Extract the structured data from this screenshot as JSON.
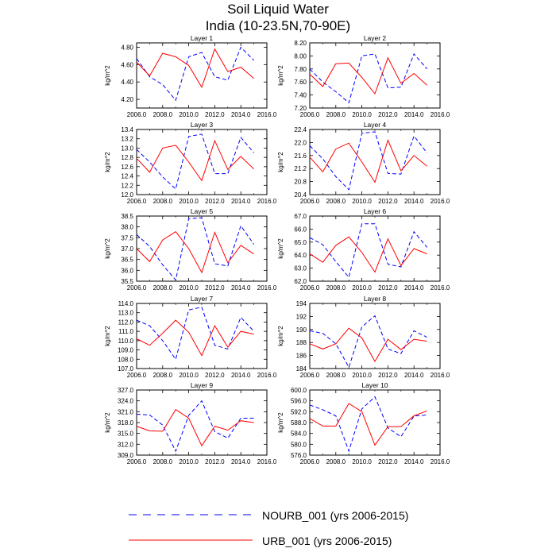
{
  "figure": {
    "title_line1": "Soil Liquid Water",
    "title_line2": "India (10-23.5N,70-90E)"
  },
  "legend": [
    {
      "label": "NOURB_001 (yrs 2006-2015)",
      "color": "#0000ff",
      "style": "dashed"
    },
    {
      "label": "URB_001 (yrs 2006-2015)",
      "color": "#ff0000",
      "style": "solid"
    }
  ],
  "chart_data": [
    {
      "type": "line",
      "title": "Layer 1",
      "ylabel": "kg/m^2",
      "xlim": [
        2006,
        2016
      ],
      "ylim": [
        4.1,
        4.85
      ],
      "xticks": [
        "2006.0",
        "2008.0",
        "2010.0",
        "2012.0",
        "2014.0",
        "2016.0"
      ],
      "yticks": [
        {
          "v": 4.2,
          "label": "4.20"
        },
        {
          "v": 4.4,
          "label": "4.40"
        },
        {
          "v": 4.6,
          "label": "4.60"
        },
        {
          "v": 4.8,
          "label": "4.80"
        }
      ],
      "x": [
        2006,
        2007,
        2008,
        2009,
        2010,
        2011,
        2012,
        2013,
        2014,
        2015
      ],
      "series": [
        {
          "name": "NOURB_001 (yrs 2006-2015)",
          "values": [
            4.67,
            4.46,
            4.37,
            4.19,
            4.69,
            4.74,
            4.46,
            4.42,
            4.8,
            4.65
          ]
        },
        {
          "name": "URB_001 (yrs 2006-2015)",
          "values": [
            4.63,
            4.47,
            4.73,
            4.69,
            4.59,
            4.34,
            4.78,
            4.52,
            4.57,
            4.44
          ]
        }
      ]
    },
    {
      "type": "line",
      "title": "Layer 2",
      "ylabel": "kg/m^2",
      "xlim": [
        2006,
        2016
      ],
      "ylim": [
        7.2,
        8.2
      ],
      "xticks": [
        "2006.0",
        "2008.0",
        "2010.0",
        "2012.0",
        "2014.0",
        "2016.0"
      ],
      "yticks": [
        {
          "v": 7.2,
          "label": "7.20"
        },
        {
          "v": 7.4,
          "label": "7.40"
        },
        {
          "v": 7.6,
          "label": "7.60"
        },
        {
          "v": 7.8,
          "label": "7.80"
        },
        {
          "v": 8.0,
          "label": "8.00"
        },
        {
          "v": 8.2,
          "label": "8.20"
        }
      ],
      "x": [
        2006,
        2007,
        2008,
        2009,
        2010,
        2011,
        2012,
        2013,
        2014,
        2015
      ],
      "series": [
        {
          "name": "NOURB_001 (yrs 2006-2015)",
          "values": [
            7.8,
            7.6,
            7.45,
            7.28,
            8.0,
            8.03,
            7.51,
            7.52,
            8.03,
            7.8
          ]
        },
        {
          "name": "URB_001 (yrs 2006-2015)",
          "values": [
            7.72,
            7.53,
            7.88,
            7.89,
            7.67,
            7.42,
            7.97,
            7.58,
            7.73,
            7.55
          ]
        }
      ]
    },
    {
      "type": "line",
      "title": "Layer 3",
      "ylabel": "kg/m^2",
      "xlim": [
        2006,
        2016
      ],
      "ylim": [
        12.0,
        13.4
      ],
      "xticks": [
        "2006.0",
        "2008.0",
        "2010.0",
        "2012.0",
        "2014.0",
        "2016.0"
      ],
      "yticks": [
        {
          "v": 12.0,
          "label": "12.0"
        },
        {
          "v": 12.2,
          "label": "12.2"
        },
        {
          "v": 12.4,
          "label": "12.4"
        },
        {
          "v": 12.6,
          "label": "12.6"
        },
        {
          "v": 12.8,
          "label": "12.8"
        },
        {
          "v": 13.0,
          "label": "13.0"
        },
        {
          "v": 13.2,
          "label": "13.2"
        },
        {
          "v": 13.4,
          "label": "13.4"
        }
      ],
      "x": [
        2006,
        2007,
        2008,
        2009,
        2010,
        2011,
        2012,
        2013,
        2014,
        2015
      ],
      "series": [
        {
          "name": "NOURB_001 (yrs 2006-2015)",
          "values": [
            12.97,
            12.7,
            12.38,
            12.12,
            13.25,
            13.3,
            12.45,
            12.45,
            13.23,
            12.9
          ]
        },
        {
          "name": "URB_001 (yrs 2006-2015)",
          "values": [
            12.78,
            12.48,
            13.0,
            13.06,
            12.7,
            12.3,
            13.16,
            12.54,
            12.82,
            12.55
          ]
        }
      ]
    },
    {
      "type": "line",
      "title": "Layer 4",
      "ylabel": "kg/m^2",
      "xlim": [
        2006,
        2016
      ],
      "ylim": [
        20.4,
        22.4
      ],
      "xticks": [
        "2006.0",
        "2008.0",
        "2010.0",
        "2012.0",
        "2014.0",
        "2016.0"
      ],
      "yticks": [
        {
          "v": 20.4,
          "label": "20.4"
        },
        {
          "v": 20.8,
          "label": "20.8"
        },
        {
          "v": 21.2,
          "label": "21.2"
        },
        {
          "v": 21.6,
          "label": "21.6"
        },
        {
          "v": 22.0,
          "label": "22.0"
        },
        {
          "v": 22.4,
          "label": "22.4"
        }
      ],
      "x": [
        2006,
        2007,
        2008,
        2009,
        2010,
        2011,
        2012,
        2013,
        2014,
        2015
      ],
      "series": [
        {
          "name": "NOURB_001 (yrs 2006-2015)",
          "values": [
            21.9,
            21.5,
            20.95,
            20.55,
            22.28,
            22.33,
            21.05,
            21.03,
            22.2,
            21.68
          ]
        },
        {
          "name": "URB_001 (yrs 2006-2015)",
          "values": [
            21.55,
            21.1,
            21.8,
            21.98,
            21.4,
            20.78,
            22.07,
            21.13,
            21.6,
            21.27
          ]
        }
      ]
    },
    {
      "type": "line",
      "title": "Layer 5",
      "ylabel": "kg/m^2",
      "xlim": [
        2006,
        2016
      ],
      "ylim": [
        35.5,
        38.5
      ],
      "xticks": [
        "2006.0",
        "2008.0",
        "2010.0",
        "2012.0",
        "2014.0",
        "2016.0"
      ],
      "yticks": [
        {
          "v": 35.5,
          "label": "35.5"
        },
        {
          "v": 36.0,
          "label": "36.0"
        },
        {
          "v": 36.5,
          "label": "36.5"
        },
        {
          "v": 37.0,
          "label": "37.0"
        },
        {
          "v": 37.5,
          "label": "37.5"
        },
        {
          "v": 38.0,
          "label": "38.0"
        },
        {
          "v": 38.5,
          "label": "38.5"
        }
      ],
      "x": [
        2006,
        2007,
        2008,
        2009,
        2010,
        2011,
        2012,
        2013,
        2014,
        2015
      ],
      "series": [
        {
          "name": "NOURB_001 (yrs 2006-2015)",
          "values": [
            37.65,
            37.1,
            36.25,
            35.55,
            38.38,
            38.42,
            36.3,
            36.2,
            38.05,
            37.2
          ]
        },
        {
          "name": "URB_001 (yrs 2006-2015)",
          "values": [
            37.0,
            36.4,
            37.4,
            37.78,
            37.0,
            35.9,
            37.75,
            36.35,
            37.15,
            36.75
          ]
        }
      ]
    },
    {
      "type": "line",
      "title": "Layer 6",
      "ylabel": "kg/m^2",
      "xlim": [
        2006,
        2016
      ],
      "ylim": [
        62.0,
        67.0
      ],
      "xticks": [
        "2006.0",
        "2008.0",
        "2010.0",
        "2012.0",
        "2014.0",
        "2016.0"
      ],
      "yticks": [
        {
          "v": 62.0,
          "label": "62.0"
        },
        {
          "v": 63.0,
          "label": "63.0"
        },
        {
          "v": 64.0,
          "label": "64.0"
        },
        {
          "v": 65.0,
          "label": "65.0"
        },
        {
          "v": 66.0,
          "label": "66.0"
        },
        {
          "v": 67.0,
          "label": "67.0"
        }
      ],
      "x": [
        2006,
        2007,
        2008,
        2009,
        2010,
        2011,
        2012,
        2013,
        2014,
        2015
      ],
      "series": [
        {
          "name": "NOURB_001 (yrs 2006-2015)",
          "values": [
            65.35,
            64.8,
            63.5,
            62.3,
            66.4,
            66.4,
            63.3,
            63.1,
            65.8,
            64.6
          ]
        },
        {
          "name": "URB_001 (yrs 2006-2015)",
          "values": [
            64.1,
            63.45,
            64.75,
            65.4,
            64.2,
            62.7,
            65.25,
            63.2,
            64.5,
            64.1
          ]
        }
      ]
    },
    {
      "type": "line",
      "title": "Layer 7",
      "ylabel": "kg/m^2",
      "xlim": [
        2006,
        2016
      ],
      "ylim": [
        107.0,
        114.0
      ],
      "xticks": [
        "2006.0",
        "2008.0",
        "2010.0",
        "2012.0",
        "2014.0",
        "2016.0"
      ],
      "yticks": [
        {
          "v": 107.0,
          "label": "107.0"
        },
        {
          "v": 108.0,
          "label": "108.0"
        },
        {
          "v": 109.0,
          "label": "109.0"
        },
        {
          "v": 110.0,
          "label": "110.0"
        },
        {
          "v": 111.0,
          "label": "111.0"
        },
        {
          "v": 112.0,
          "label": "112.0"
        },
        {
          "v": 113.0,
          "label": "113.0"
        },
        {
          "v": 114.0,
          "label": "114.0"
        }
      ],
      "x": [
        2006,
        2007,
        2008,
        2009,
        2010,
        2011,
        2012,
        2013,
        2014,
        2015
      ],
      "series": [
        {
          "name": "NOURB_001 (yrs 2006-2015)",
          "values": [
            112.2,
            111.6,
            110.0,
            108.0,
            113.3,
            113.6,
            109.5,
            109.1,
            112.5,
            111.0
          ]
        },
        {
          "name": "URB_001 (yrs 2006-2015)",
          "values": [
            110.2,
            109.5,
            110.8,
            112.2,
            110.9,
            108.4,
            111.6,
            109.3,
            111.0,
            110.7
          ]
        }
      ]
    },
    {
      "type": "line",
      "title": "Layer 8",
      "ylabel": "kg/m^2",
      "xlim": [
        2006,
        2016
      ],
      "ylim": [
        184,
        194
      ],
      "xticks": [
        "2006.0",
        "2008.0",
        "2010.0",
        "2012.0",
        "2014.0",
        "2016.0"
      ],
      "yticks": [
        {
          "v": 184,
          "label": "184"
        },
        {
          "v": 186,
          "label": "186"
        },
        {
          "v": 188,
          "label": "188"
        },
        {
          "v": 190,
          "label": "190"
        },
        {
          "v": 192,
          "label": "192"
        },
        {
          "v": 194,
          "label": "194"
        }
      ],
      "x": [
        2006,
        2007,
        2008,
        2009,
        2010,
        2011,
        2012,
        2013,
        2014,
        2015
      ],
      "series": [
        {
          "name": "NOURB_001 (yrs 2006-2015)",
          "values": [
            189.8,
            189.4,
            187.8,
            184.2,
            190.4,
            192.1,
            187.0,
            186.3,
            189.8,
            188.8
          ]
        },
        {
          "name": "URB_001 (yrs 2006-2015)",
          "values": [
            187.8,
            187.0,
            187.8,
            190.2,
            188.7,
            185.1,
            188.5,
            186.9,
            188.5,
            188.2
          ]
        }
      ]
    },
    {
      "type": "line",
      "title": "Layer 9",
      "ylabel": "kg/m^2",
      "xlim": [
        2006,
        2016
      ],
      "ylim": [
        309.0,
        327.0
      ],
      "xticks": [
        "2006.0",
        "2008.0",
        "2010.0",
        "2012.0",
        "2014.0",
        "2016.0"
      ],
      "yticks": [
        {
          "v": 309.0,
          "label": "309.0"
        },
        {
          "v": 312.0,
          "label": "312.0"
        },
        {
          "v": 315.0,
          "label": "315.0"
        },
        {
          "v": 318.0,
          "label": "318.0"
        },
        {
          "v": 321.0,
          "label": "321.0"
        },
        {
          "v": 324.0,
          "label": "324.0"
        },
        {
          "v": 327.0,
          "label": "327.0"
        }
      ],
      "x": [
        2006,
        2007,
        2008,
        2009,
        2010,
        2011,
        2012,
        2013,
        2014,
        2015
      ],
      "series": [
        {
          "name": "NOURB_001 (yrs 2006-2015)",
          "values": [
            320.3,
            320.1,
            317.3,
            310.1,
            320.0,
            324.0,
            315.5,
            313.7,
            319.2,
            319.2
          ]
        },
        {
          "name": "URB_001 (yrs 2006-2015)",
          "values": [
            317.0,
            315.7,
            315.6,
            321.6,
            319.2,
            311.6,
            317.0,
            315.9,
            318.5,
            318.0
          ]
        }
      ]
    },
    {
      "type": "line",
      "title": "Layer 10",
      "ylabel": "kg/m^2",
      "xlim": [
        2006,
        2016
      ],
      "ylim": [
        576.0,
        600.0
      ],
      "xticks": [
        "2006.0",
        "2008.0",
        "2010.0",
        "2012.0",
        "2014.0",
        "2016.0"
      ],
      "yticks": [
        {
          "v": 576.0,
          "label": "576.0"
        },
        {
          "v": 580.0,
          "label": "580.0"
        },
        {
          "v": 584.0,
          "label": "584.0"
        },
        {
          "v": 588.0,
          "label": "588.0"
        },
        {
          "v": 592.0,
          "label": "592.0"
        },
        {
          "v": 596.0,
          "label": "596.0"
        },
        {
          "v": 600.0,
          "label": "600.0"
        }
      ],
      "x": [
        2006,
        2007,
        2008,
        2009,
        2010,
        2011,
        2012,
        2013,
        2014,
        2015
      ],
      "series": [
        {
          "name": "NOURB_001 (yrs 2006-2015)",
          "values": [
            594.5,
            592.7,
            590.5,
            577.5,
            593.0,
            597.5,
            586.0,
            582.8,
            590.4,
            590.8
          ]
        },
        {
          "name": "URB_001 (yrs 2006-2015)",
          "values": [
            589.5,
            586.7,
            586.7,
            595.0,
            592.0,
            579.7,
            586.5,
            586.5,
            590.5,
            592.3
          ]
        }
      ]
    }
  ]
}
